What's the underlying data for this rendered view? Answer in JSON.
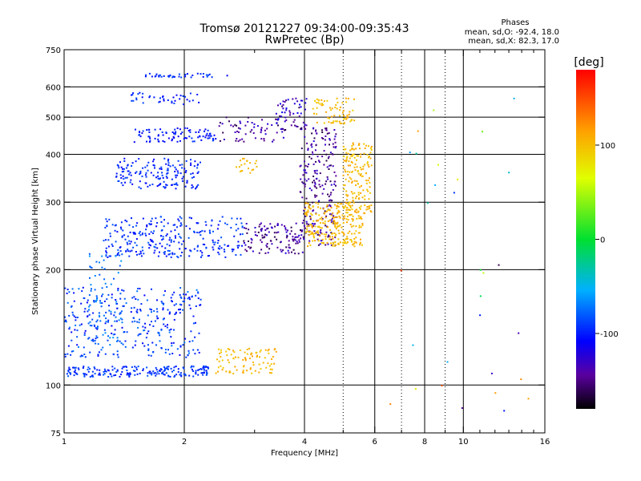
{
  "chart_data": {
    "type": "scatter",
    "title": "Tromsø 20121227 09:34:00-09:35:43",
    "subtitle": "RwPretec (Bp)",
    "xlabel": "Frequency [MHz]",
    "ylabel": "Stationary phase Virtual Height [km]",
    "x_scale": "log",
    "y_scale": "log",
    "xlim": [
      1,
      16
    ],
    "ylim": [
      75,
      750
    ],
    "x_ticks": [
      {
        "value": 1,
        "label": "1"
      },
      {
        "value": 2,
        "label": "2"
      },
      {
        "value": 4,
        "label": "4"
      },
      {
        "value": 6,
        "label": "6"
      },
      {
        "value": 8,
        "label": "8"
      },
      {
        "value": 10,
        "label": "10"
      },
      {
        "value": 16,
        "label": "16"
      }
    ],
    "x_minor_ticks": [
      3,
      5,
      7,
      9,
      11,
      12,
      13,
      14,
      15
    ],
    "x_gridlines": [
      2,
      4,
      6,
      8,
      10
    ],
    "x_dotted_gridlines": [
      5,
      7,
      9
    ],
    "y_ticks": [
      {
        "value": 75,
        "label": "75"
      },
      {
        "value": 100,
        "label": "100"
      },
      {
        "value": 200,
        "label": "200"
      },
      {
        "value": 300,
        "label": "300"
      },
      {
        "value": 400,
        "label": "400"
      },
      {
        "value": 500,
        "label": "500"
      },
      {
        "value": 600,
        "label": "600"
      },
      {
        "value": 750,
        "label": "750"
      }
    ],
    "y_gridlines": [
      100,
      200,
      300,
      400,
      500,
      600
    ],
    "legend": {
      "title": "Phases",
      "line1": "mean, sd,O: -92.4, 18.0",
      "line2": "mean, sd,X:  82.3, 17.0"
    },
    "colorbar": {
      "title": "[deg]",
      "min": -180,
      "max": 180,
      "ticks": [
        {
          "value": 100,
          "label": "100"
        },
        {
          "value": 0,
          "label": "0"
        },
        {
          "value": -100,
          "label": "-100"
        }
      ]
    },
    "clusters": [
      {
        "f": [
          1.55,
          2.6
        ],
        "h": [
          635,
          650
        ],
        "n": 40,
        "phase": [
          -110,
          -85
        ]
      },
      {
        "f": [
          1.45,
          2.2
        ],
        "h": [
          540,
          580
        ],
        "n": 40,
        "phase": [
          -110,
          -85
        ]
      },
      {
        "f": [
          1.5,
          2.4
        ],
        "h": [
          430,
          470
        ],
        "n": 90,
        "phase": [
          -115,
          -90
        ]
      },
      {
        "f": [
          2.4,
          3.6
        ],
        "h": [
          430,
          500
        ],
        "n": 60,
        "phase": [
          -165,
          -120
        ]
      },
      {
        "f": [
          3.4,
          4.1
        ],
        "h": [
          460,
          560
        ],
        "n": 60,
        "phase": [
          -160,
          -110
        ]
      },
      {
        "f": [
          4.2,
          5.4
        ],
        "h": [
          480,
          560
        ],
        "n": 70,
        "phase": [
          90,
          115
        ]
      },
      {
        "f": [
          1.35,
          2.2
        ],
        "h": [
          325,
          390
        ],
        "n": 160,
        "phase": [
          -110,
          -85
        ]
      },
      {
        "f": [
          2.7,
          3.1
        ],
        "h": [
          355,
          390
        ],
        "n": 20,
        "phase": [
          95,
          110
        ]
      },
      {
        "f": [
          1.25,
          2.8
        ],
        "h": [
          215,
          275
        ],
        "n": 280,
        "phase": [
          -110,
          -80
        ]
      },
      {
        "f": [
          2.8,
          4.0
        ],
        "h": [
          220,
          265
        ],
        "n": 120,
        "phase": [
          -165,
          -120
        ]
      },
      {
        "f": [
          3.9,
          4.8
        ],
        "h": [
          230,
          470
        ],
        "n": 220,
        "phase": [
          -165,
          -120
        ]
      },
      {
        "f": [
          4.0,
          5.6
        ],
        "h": [
          230,
          300
        ],
        "n": 260,
        "phase": [
          90,
          115
        ]
      },
      {
        "f": [
          5.0,
          5.9
        ],
        "h": [
          280,
          430
        ],
        "n": 160,
        "phase": [
          90,
          115
        ]
      },
      {
        "f": [
          1.15,
          1.4
        ],
        "h": [
          130,
          220
        ],
        "n": 70,
        "phase": [
          -85,
          -60
        ]
      },
      {
        "f": [
          1.0,
          2.2
        ],
        "h": [
          118,
          180
        ],
        "n": 330,
        "phase": [
          -110,
          -70
        ]
      },
      {
        "f": [
          1.0,
          2.3
        ],
        "h": [
          105,
          112
        ],
        "n": 200,
        "phase": [
          -105,
          -80
        ]
      },
      {
        "f": [
          2.4,
          3.4
        ],
        "h": [
          107,
          125
        ],
        "n": 90,
        "phase": [
          90,
          115
        ]
      },
      {
        "f": [
          6.5,
          15.5
        ],
        "h": [
          85,
          620
        ],
        "n": 30,
        "phase": [
          -180,
          180
        ]
      }
    ]
  }
}
